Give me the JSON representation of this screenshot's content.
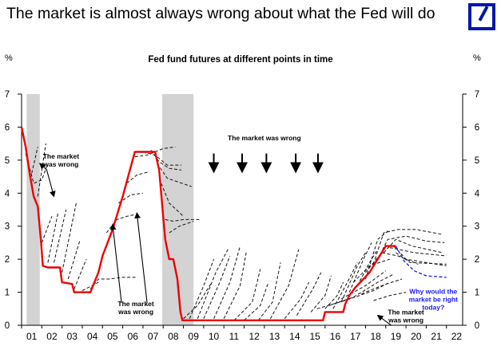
{
  "header": {
    "headline": "The market is almost always wrong about what the Fed will do",
    "logo_icon": "deutsche-bank-logo"
  },
  "chart_data": {
    "type": "line",
    "title": "Fed fund futures at different points in time",
    "ylabel_left": "%",
    "ylabel_right": "%",
    "xlim": [
      2001,
      2022.8
    ],
    "ylim": [
      0,
      7
    ],
    "x_ticks": [
      "01",
      "02",
      "03",
      "04",
      "05",
      "06",
      "07",
      "08",
      "09",
      "10",
      "11",
      "12",
      "13",
      "14",
      "15",
      "16",
      "17",
      "18",
      "19",
      "20",
      "21",
      "22"
    ],
    "y_ticks": [
      "0",
      "1",
      "2",
      "3",
      "4",
      "5",
      "6",
      "7"
    ],
    "colors": {
      "actual": "#ee0000",
      "futures": "#111111",
      "recession": "#d3d3d3",
      "blue_annotation": "#1a1aff"
    },
    "recession_bands": [
      [
        2001.25,
        2001.9
      ],
      [
        2007.95,
        2009.5
      ]
    ],
    "series": [
      {
        "id": "actual",
        "style": "solid",
        "points": [
          [
            2001.0,
            6.0
          ],
          [
            2001.2,
            5.4
          ],
          [
            2001.4,
            4.6
          ],
          [
            2001.6,
            3.9
          ],
          [
            2001.8,
            3.6
          ],
          [
            2001.95,
            2.6
          ],
          [
            2002.05,
            1.8
          ],
          [
            2002.3,
            1.75
          ],
          [
            2002.9,
            1.75
          ],
          [
            2003.0,
            1.3
          ],
          [
            2003.5,
            1.25
          ],
          [
            2003.6,
            1.0
          ],
          [
            2004.4,
            1.0
          ],
          [
            2004.6,
            1.3
          ],
          [
            2004.8,
            1.6
          ],
          [
            2005.0,
            2.1
          ],
          [
            2005.5,
            2.9
          ],
          [
            2006.0,
            3.9
          ],
          [
            2006.4,
            4.8
          ],
          [
            2006.6,
            5.25
          ],
          [
            2007.6,
            5.25
          ],
          [
            2007.8,
            4.7
          ],
          [
            2008.0,
            3.3
          ],
          [
            2008.1,
            2.6
          ],
          [
            2008.3,
            2.0
          ],
          [
            2008.5,
            2.0
          ],
          [
            2008.7,
            1.4
          ],
          [
            2008.85,
            0.4
          ],
          [
            2008.95,
            0.15
          ],
          [
            2015.9,
            0.15
          ],
          [
            2016.0,
            0.4
          ],
          [
            2016.9,
            0.4
          ],
          [
            2017.0,
            0.65
          ],
          [
            2017.2,
            0.9
          ],
          [
            2017.5,
            1.15
          ],
          [
            2017.9,
            1.4
          ],
          [
            2018.2,
            1.6
          ],
          [
            2018.5,
            1.9
          ],
          [
            2018.8,
            2.2
          ],
          [
            2019.0,
            2.4
          ],
          [
            2019.5,
            2.4
          ]
        ]
      },
      {
        "id": "futures",
        "style": "dashed",
        "paths": [
          [
            [
              2001.2,
              5.2
            ],
            [
              2001.6,
              4.3
            ],
            [
              2002.0,
              4.4
            ],
            [
              2002.3,
              4.9
            ]
          ],
          [
            [
              2001.5,
              4.6
            ],
            [
              2001.8,
              5.4
            ]
          ],
          [
            [
              2001.8,
              3.9
            ],
            [
              2002.2,
              5.5
            ]
          ],
          [
            [
              2002.0,
              2.5
            ],
            [
              2002.5,
              3.3
            ]
          ],
          [
            [
              2002.3,
              1.9
            ],
            [
              2002.8,
              3.4
            ]
          ],
          [
            [
              2002.6,
              1.9
            ],
            [
              2003.2,
              3.5
            ]
          ],
          [
            [
              2003.0,
              1.6
            ],
            [
              2003.7,
              3.7
            ]
          ],
          [
            [
              2003.3,
              1.4
            ],
            [
              2003.9,
              2.6
            ]
          ],
          [
            [
              2003.6,
              1.1
            ],
            [
              2004.2,
              2.0
            ]
          ],
          [
            [
              2004.0,
              1.05
            ],
            [
              2004.8,
              1.3
            ]
          ],
          [
            [
              2004.4,
              1.1
            ],
            [
              2004.8,
              1.4
            ],
            [
              2005.3,
              1.4
            ],
            [
              2006.0,
              1.45
            ],
            [
              2006.7,
              1.45
            ]
          ],
          [
            [
              2005.2,
              2.8
            ],
            [
              2005.7,
              3.2
            ],
            [
              2006.2,
              3.3
            ],
            [
              2006.6,
              3.35
            ]
          ],
          [
            [
              2005.8,
              3.7
            ],
            [
              2006.4,
              3.95
            ],
            [
              2007.0,
              4.0
            ]
          ],
          [
            [
              2006.2,
              4.3
            ],
            [
              2006.7,
              4.55
            ],
            [
              2007.3,
              4.65
            ]
          ],
          [
            [
              2006.6,
              5.1
            ],
            [
              2007.2,
              5.15
            ],
            [
              2008.0,
              5.35
            ],
            [
              2008.6,
              5.4
            ]
          ],
          [
            [
              2007.0,
              5.25
            ],
            [
              2007.6,
              5.15
            ],
            [
              2008.2,
              4.85
            ],
            [
              2008.9,
              4.85
            ]
          ],
          [
            [
              2007.4,
              5.3
            ],
            [
              2007.8,
              4.95
            ],
            [
              2008.3,
              4.75
            ],
            [
              2008.9,
              4.7
            ]
          ],
          [
            [
              2007.7,
              4.9
            ],
            [
              2008.2,
              4.45
            ],
            [
              2009.4,
              4.2
            ]
          ],
          [
            [
              2007.9,
              4.3
            ],
            [
              2008.3,
              3.7
            ],
            [
              2009.0,
              3.3
            ]
          ],
          [
            [
              2008.1,
              3.2
            ],
            [
              2008.5,
              3.15
            ],
            [
              2009.0,
              3.2
            ],
            [
              2009.8,
              3.2
            ]
          ],
          [
            [
              2008.3,
              2.8
            ],
            [
              2008.8,
              3.0
            ],
            [
              2009.5,
              3.15
            ]
          ],
          [
            [
              2009.0,
              0.2
            ],
            [
              2009.7,
              0.6
            ],
            [
              2010.4,
              1.3
            ]
          ],
          [
            [
              2009.3,
              0.2
            ],
            [
              2010.0,
              1.2
            ],
            [
              2010.5,
              2.0
            ]
          ],
          [
            [
              2009.7,
              0.2
            ],
            [
              2010.6,
              1.6
            ],
            [
              2011.2,
              2.3
            ]
          ],
          [
            [
              2010.0,
              0.2
            ],
            [
              2010.8,
              1.3
            ],
            [
              2011.3,
              2.1
            ]
          ],
          [
            [
              2010.5,
              0.2
            ],
            [
              2011.3,
              1.3
            ],
            [
              2011.8,
              2.4
            ]
          ],
          [
            [
              2011.0,
              0.2
            ],
            [
              2011.8,
              1.2
            ],
            [
              2012.1,
              2.2
            ]
          ],
          [
            [
              2011.5,
              0.15
            ],
            [
              2012.4,
              0.7
            ],
            [
              2012.8,
              1.7
            ]
          ],
          [
            [
              2012.0,
              0.15
            ],
            [
              2012.8,
              0.6
            ],
            [
              2013.2,
              1.3
            ]
          ],
          [
            [
              2012.7,
              0.15
            ],
            [
              2013.4,
              0.7
            ],
            [
              2013.8,
              1.9
            ]
          ],
          [
            [
              2013.3,
              0.2
            ],
            [
              2014.2,
              1.2
            ],
            [
              2014.7,
              2.3
            ]
          ],
          [
            [
              2014.0,
              0.2
            ],
            [
              2014.8,
              0.8
            ],
            [
              2015.2,
              1.3
            ]
          ],
          [
            [
              2014.6,
              0.3
            ],
            [
              2015.4,
              1.1
            ],
            [
              2015.8,
              1.6
            ]
          ],
          [
            [
              2015.3,
              0.4
            ],
            [
              2016.0,
              0.9
            ],
            [
              2016.3,
              1.5
            ]
          ],
          [
            [
              2016.0,
              0.5
            ],
            [
              2016.6,
              0.9
            ],
            [
              2016.9,
              1.3
            ]
          ],
          [
            [
              2016.4,
              0.5
            ],
            [
              2017.1,
              1.3
            ],
            [
              2017.6,
              1.9
            ]
          ],
          [
            [
              2016.8,
              0.7
            ],
            [
              2017.6,
              1.8
            ],
            [
              2018.0,
              2.2
            ]
          ],
          [
            [
              2017.2,
              1.0
            ],
            [
              2017.9,
              2.0
            ],
            [
              2018.3,
              2.5
            ]
          ],
          [
            [
              2017.6,
              1.2
            ],
            [
              2018.2,
              1.9
            ],
            [
              2018.6,
              2.3
            ]
          ],
          [
            [
              2018.0,
              1.4
            ],
            [
              2018.6,
              2.6
            ],
            [
              2019.2,
              2.9
            ]
          ],
          [
            [
              2018.3,
              1.7
            ],
            [
              2018.9,
              2.8
            ],
            [
              2019.6,
              2.9
            ],
            [
              2020.5,
              2.9
            ],
            [
              2021.8,
              2.75
            ]
          ],
          [
            [
              2018.6,
              2.0
            ],
            [
              2019.1,
              2.6
            ],
            [
              2020.0,
              2.7
            ],
            [
              2021.0,
              2.55
            ],
            [
              2021.9,
              2.5
            ]
          ],
          [
            [
              2018.9,
              2.2
            ],
            [
              2019.5,
              2.6
            ],
            [
              2020.3,
              2.4
            ],
            [
              2021.8,
              2.2
            ]
          ],
          [
            [
              2019.2,
              2.35
            ],
            [
              2019.6,
              2.3
            ],
            [
              2020.4,
              2.2
            ],
            [
              2022.0,
              2.1
            ]
          ],
          [
            [
              2019.4,
              2.4
            ],
            [
              2020.0,
              2.0
            ],
            [
              2021.0,
              1.9
            ],
            [
              2022.0,
              1.8
            ]
          ],
          [
            [
              2019.5,
              2.2
            ],
            [
              2020.2,
              1.9
            ],
            [
              2022.0,
              1.85
            ]
          ],
          [
            [
              2018.0,
              1.6
            ],
            [
              2018.8,
              2.2
            ],
            [
              2019.6,
              2.1
            ],
            [
              2020.6,
              1.85
            ]
          ],
          [
            [
              2017.4,
              1.3
            ],
            [
              2018.2,
              1.8
            ],
            [
              2019.2,
              2.0
            ]
          ],
          [
            [
              2016.8,
              0.8
            ],
            [
              2018.0,
              1.2
            ],
            [
              2019.0,
              1.65
            ]
          ],
          [
            [
              2016.2,
              0.6
            ],
            [
              2017.4,
              0.85
            ],
            [
              2018.6,
              1.3
            ],
            [
              2019.4,
              1.55
            ]
          ],
          [
            [
              2015.6,
              0.5
            ],
            [
              2017.0,
              0.75
            ],
            [
              2018.4,
              1.05
            ],
            [
              2019.2,
              1.3
            ]
          ],
          [
            [
              2017.8,
              0.95
            ],
            [
              2018.8,
              1.2
            ],
            [
              2019.8,
              1.4
            ]
          ],
          [
            [
              2018.4,
              0.75
            ],
            [
              2019.2,
              0.9
            ],
            [
              2020.0,
              1.0
            ]
          ]
        ]
      },
      {
        "id": "projection",
        "style": "dashed-blue",
        "points": [
          [
            2019.5,
            2.4
          ],
          [
            2019.9,
            1.95
          ],
          [
            2020.4,
            1.65
          ],
          [
            2021.0,
            1.5
          ],
          [
            2022.0,
            1.45
          ]
        ]
      }
    ],
    "annotations": [
      {
        "text": [
          "The market",
          "was wrong"
        ],
        "x": 2002.95,
        "y": 5.05,
        "arrows_to": [
          [
            2001.9,
            4.9
          ],
          [
            2002.6,
            3.9
          ]
        ]
      },
      {
        "text": [
          "The market was wrong"
        ],
        "x": 2013.0,
        "y": 5.6,
        "arrows_down_at": [
          2010.5,
          2011.9,
          2013.1,
          2014.55,
          2015.65
        ],
        "arrow_from": 5.2,
        "arrow_to": 4.65
      },
      {
        "text": [
          "The market",
          "was wrong"
        ],
        "x": 2006.65,
        "y": 0.58,
        "arrows_to": [
          [
            2005.5,
            3.05
          ],
          [
            2006.7,
            3.4
          ]
        ]
      },
      {
        "text": [
          "Why would the",
          "market be right",
          "today?"
        ],
        "x": 2021.35,
        "y": 0.95,
        "blue": true,
        "arrows_to": []
      },
      {
        "text": [
          "The market",
          "was wrong"
        ],
        "x": 2020.0,
        "y": 0.33,
        "arrows_to": [
          [
            2018.6,
            0.3
          ]
        ]
      }
    ]
  }
}
